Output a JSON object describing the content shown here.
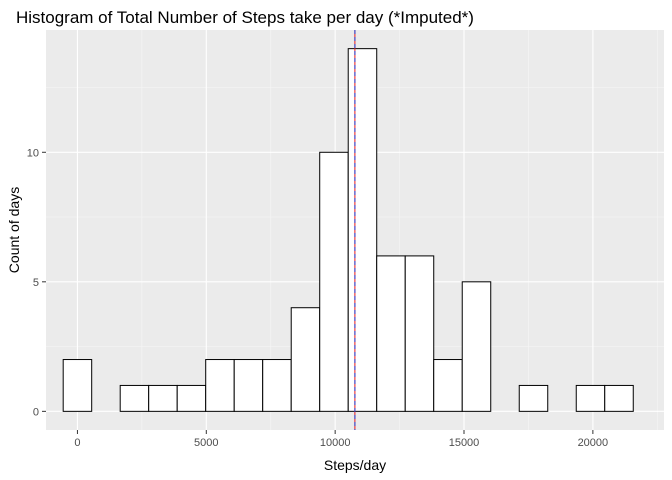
{
  "chart_data": {
    "type": "bar",
    "title": "Histogram of Total Number of Steps take per day (*Imputed*)",
    "xlabel": "Steps/day",
    "ylabel": "Count of days",
    "xlim": [
      -1220,
      22760
    ],
    "ylim": [
      -0.72,
      14.72
    ],
    "x_ticks": [
      0,
      5000,
      10000,
      15000,
      20000
    ],
    "x_tick_labels": [
      "0",
      "5000",
      "10000",
      "15000",
      "20000"
    ],
    "y_ticks": [
      0,
      5,
      10
    ],
    "y_tick_labels": [
      "0",
      "5",
      "10"
    ],
    "bin_width": 1106,
    "bins": [
      {
        "x0": -553,
        "x1": 553,
        "count": 2
      },
      {
        "x0": 553,
        "x1": 1659,
        "count": 0
      },
      {
        "x0": 1659,
        "x1": 2765,
        "count": 1
      },
      {
        "x0": 2765,
        "x1": 3871,
        "count": 1
      },
      {
        "x0": 3871,
        "x1": 4977,
        "count": 1
      },
      {
        "x0": 4977,
        "x1": 6083,
        "count": 2
      },
      {
        "x0": 6083,
        "x1": 7189,
        "count": 2
      },
      {
        "x0": 7189,
        "x1": 8295,
        "count": 2
      },
      {
        "x0": 8295,
        "x1": 9401,
        "count": 4
      },
      {
        "x0": 9401,
        "x1": 10507,
        "count": 10
      },
      {
        "x0": 10507,
        "x1": 11613,
        "count": 14
      },
      {
        "x0": 11613,
        "x1": 12719,
        "count": 6
      },
      {
        "x0": 12719,
        "x1": 13825,
        "count": 6
      },
      {
        "x0": 13825,
        "x1": 14931,
        "count": 2
      },
      {
        "x0": 14931,
        "x1": 16037,
        "count": 5
      },
      {
        "x0": 16037,
        "x1": 17143,
        "count": 0
      },
      {
        "x0": 17143,
        "x1": 18249,
        "count": 1
      },
      {
        "x0": 18249,
        "x1": 19355,
        "count": 0
      },
      {
        "x0": 19355,
        "x1": 20461,
        "count": 1
      },
      {
        "x0": 20461,
        "x1": 21567,
        "count": 1
      }
    ],
    "reference_lines": [
      {
        "value": 10766,
        "color": "#e41a1c"
      },
      {
        "value": 10766,
        "color": "#1f3fd6",
        "dashed": true
      }
    ],
    "grid": true,
    "colors": {
      "panel_background": "#ebebeb",
      "grid_major": "#ffffff",
      "grid_minor": "#f5f5f5",
      "bar_fill": "#ffffff",
      "bar_stroke": "#000000"
    }
  }
}
